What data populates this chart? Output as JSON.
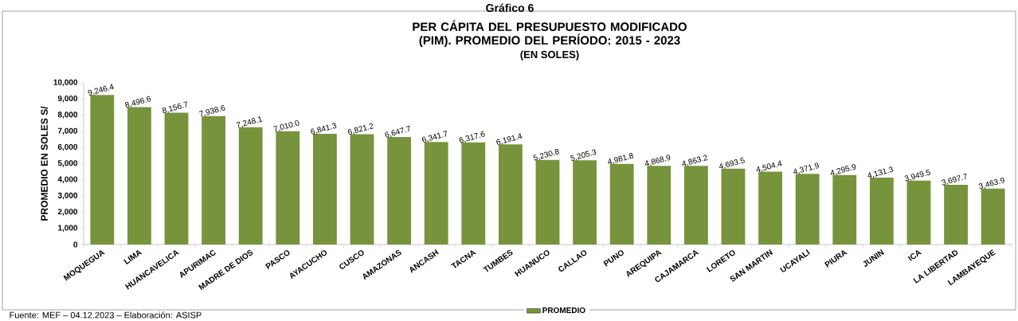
{
  "chart_data": {
    "type": "bar",
    "title": "PER CÁPITA DEL PRESUPUESTO MODIFICADO (PIM). PROMEDIO DEL PERÍODO: 2015 - 2023",
    "subtitle": "(EN SOLES)",
    "ylabel": "PROMEDIO EN SOLES S/",
    "annotations": [
      "Gráfico 6",
      "Fuente: MEF – 04.12.2023 – Elaboración: ASISP"
    ],
    "categories": [
      "MOQUEGUA",
      "LIMA",
      "HUANCAVELICA",
      "APURIMAC",
      "MADRE DE DIOS",
      "PASCO",
      "AYACUCHO",
      "CUSCO",
      "AMAZONAS",
      "ANCASH",
      "TACNA",
      "TUMBES",
      "HUANUCO",
      "CALLAO",
      "PUNO",
      "AREQUIPA",
      "CAJAMARCA",
      "LORETO",
      "SAN MARTIN",
      "UCAYALI",
      "PIURA",
      "JUNIN",
      "ICA",
      "LA LIBERTAD",
      "LAMBAYEQUE"
    ],
    "series": [
      {
        "name": "PROMEDIO",
        "color": "#77933c",
        "values": [
          9246.4,
          8496.6,
          8156.7,
          7938.6,
          7248.1,
          7010.0,
          6841.3,
          6821.2,
          6647.7,
          6341.7,
          6317.6,
          6191.4,
          5230.8,
          5205.3,
          4981.8,
          4868.9,
          4863.2,
          4693.5,
          4504.4,
          4371.9,
          4295.9,
          4131.3,
          3949.5,
          3697.7,
          3463.9
        ],
        "value_labels": [
          "9,246.4",
          "8,496.6",
          "8,156.7",
          "7,938.6",
          "7,248.1",
          "7,010.0",
          "6,841.3",
          "6,821.2",
          "6,647.7",
          "6,341.7",
          "6,317.6",
          "6,191.4",
          "5,230.8",
          "5,205.3",
          "4,981.8",
          "4,868.9",
          "4,863.2",
          "4,693.5",
          "4,504.4",
          "4,371.9",
          "4,295.9",
          "4,131.3",
          "3,949.5",
          "3,697.7",
          "3,463.9"
        ]
      }
    ],
    "ylim": [
      0,
      10000
    ],
    "yticks": [
      {
        "value": 0,
        "label": "0"
      },
      {
        "value": 1000,
        "label": "1,000"
      },
      {
        "value": 2000,
        "label": "2,000"
      },
      {
        "value": 3000,
        "label": "3,000"
      },
      {
        "value": 4000,
        "label": "4,000"
      },
      {
        "value": 5000,
        "label": "5,000"
      },
      {
        "value": 6000,
        "label": "6,000"
      },
      {
        "value": 7000,
        "label": "7,000"
      },
      {
        "value": 8000,
        "label": "8,000"
      },
      {
        "value": 9000,
        "label": "9,000"
      },
      {
        "value": 10000,
        "label": "10,000"
      }
    ],
    "grid": false,
    "legend": "bottom"
  }
}
